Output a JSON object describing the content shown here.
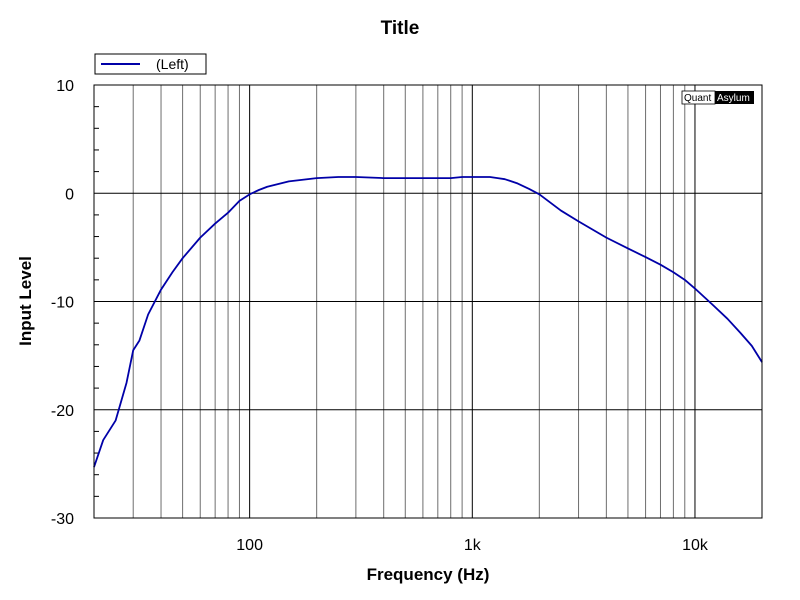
{
  "chart_data": {
    "type": "line",
    "title": "Title",
    "xlabel": "Frequency (Hz)",
    "ylabel": "Input Level",
    "x_scale": "log",
    "xlim": [
      20,
      20000
    ],
    "ylim": [
      -30,
      10
    ],
    "x_ticks": [
      {
        "value": 100,
        "label": "100"
      },
      {
        "value": 1000,
        "label": "1k"
      },
      {
        "value": 10000,
        "label": "10k"
      }
    ],
    "y_ticks": [
      {
        "value": 10,
        "label": "10"
      },
      {
        "value": 0,
        "label": "0"
      },
      {
        "value": -10,
        "label": "-10"
      },
      {
        "value": -20,
        "label": "-20"
      },
      {
        "value": -30,
        "label": "-30"
      }
    ],
    "grid": true,
    "legend": {
      "placement": "top-left"
    },
    "series": [
      {
        "name": "(Left)",
        "color": "#0000a8",
        "x": [
          20,
          22,
          25,
          28,
          30,
          32,
          35,
          40,
          45,
          50,
          60,
          70,
          80,
          90,
          100,
          110,
          120,
          150,
          200,
          250,
          300,
          400,
          500,
          600,
          700,
          800,
          900,
          1000,
          1100,
          1200,
          1300,
          1400,
          1500,
          1600,
          1800,
          2000,
          2500,
          3000,
          4000,
          5000,
          6000,
          7000,
          8000,
          9000,
          10000,
          12000,
          14000,
          16000,
          18000,
          20000
        ],
        "y": [
          -25.3,
          -22.8,
          -21.0,
          -17.5,
          -14.5,
          -13.6,
          -11.2,
          -8.9,
          -7.3,
          -6.0,
          -4.1,
          -2.8,
          -1.8,
          -0.7,
          -0.1,
          0.3,
          0.6,
          1.1,
          1.4,
          1.5,
          1.5,
          1.4,
          1.4,
          1.4,
          1.4,
          1.4,
          1.5,
          1.5,
          1.5,
          1.5,
          1.4,
          1.3,
          1.1,
          0.9,
          0.4,
          -0.1,
          -1.6,
          -2.6,
          -4.1,
          -5.1,
          -5.9,
          -6.6,
          -7.3,
          -8.0,
          -8.8,
          -10.3,
          -11.6,
          -12.9,
          -14.1,
          -15.6
        ]
      }
    ]
  },
  "branding": {
    "part1": "Quant",
    "part2": "Asylum"
  }
}
